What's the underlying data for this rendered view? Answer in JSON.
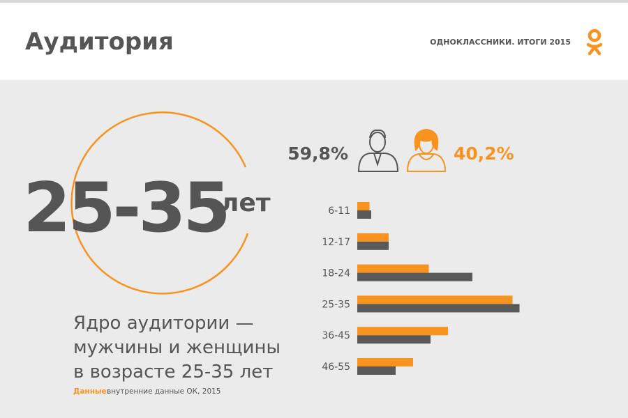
{
  "header": {
    "title": "Аудитория",
    "brand": "ОДНОКЛАССНИКИ. ИТОГИ 2015"
  },
  "core": {
    "age_range": "25-35",
    "unit": "лет"
  },
  "gender": {
    "male": {
      "value": 59.8,
      "label": "59,8%"
    },
    "female": {
      "value": 40.2,
      "label": "40,2%"
    }
  },
  "description": [
    "Ядро аудитории —",
    "мужчины и женщины",
    "в возрасте 25-35 лет"
  ],
  "source": {
    "label": "Данные:",
    "text": "внутренние данные ОК, 2015"
  },
  "chart_data": {
    "type": "hbar",
    "categories": [
      "6-11",
      "12-17",
      "18-24",
      "25-35",
      "36-45",
      "46-55"
    ],
    "series": [
      {
        "color": "#f7931e",
        "values": [
          7,
          18,
          41,
          89,
          52,
          32
        ]
      },
      {
        "color": "#595959",
        "values": [
          8,
          18,
          66,
          93,
          42,
          22
        ]
      }
    ],
    "xlim": [
      0,
      100
    ]
  }
}
